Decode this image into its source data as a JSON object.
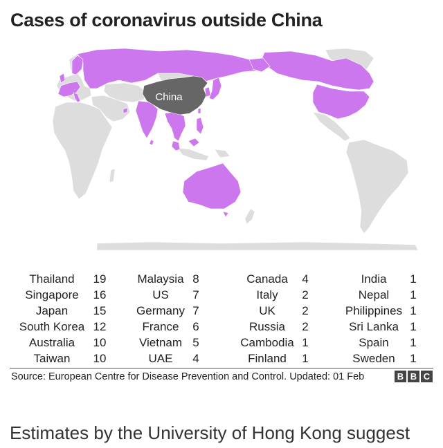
{
  "title": "Cases of coronavirus outside China",
  "map": {
    "china_label": "China",
    "colors": {
      "affected": "#cc77ee",
      "china": "#666666",
      "other": "#dddddd",
      "border": "#ffffff"
    },
    "affected_regions": [
      "Canada",
      "US",
      "Russia",
      "Finland",
      "Sweden",
      "UK",
      "Spain",
      "France",
      "Germany",
      "Italy",
      "India",
      "Nepal",
      "Sri Lanka",
      "Cambodia",
      "Vietnam",
      "Thailand",
      "Malaysia",
      "Singapore",
      "Philippines",
      "Taiwan",
      "Japan",
      "South Korea",
      "UAE",
      "Australia"
    ]
  },
  "table": {
    "columns": [
      [
        {
          "country": "Thailand",
          "cases": "19"
        },
        {
          "country": "Singapore",
          "cases": "16"
        },
        {
          "country": "Japan",
          "cases": "15"
        },
        {
          "country": "South Korea",
          "cases": "12"
        },
        {
          "country": "Australia",
          "cases": "10"
        },
        {
          "country": "Taiwan",
          "cases": "10"
        }
      ],
      [
        {
          "country": "Malaysia",
          "cases": "8"
        },
        {
          "country": "US",
          "cases": "7"
        },
        {
          "country": "Germany",
          "cases": "7"
        },
        {
          "country": "France",
          "cases": "6"
        },
        {
          "country": "Vietnam",
          "cases": "5"
        },
        {
          "country": "UAE",
          "cases": "4"
        }
      ],
      [
        {
          "country": "Canada",
          "cases": "4"
        },
        {
          "country": "Italy",
          "cases": "2"
        },
        {
          "country": "UK",
          "cases": "2"
        },
        {
          "country": "Russia",
          "cases": "2"
        },
        {
          "country": "Cambodia",
          "cases": "1"
        },
        {
          "country": "Finland",
          "cases": "1"
        }
      ],
      [
        {
          "country": "India",
          "cases": "1"
        },
        {
          "country": "Nepal",
          "cases": "1"
        },
        {
          "country": "Philippines",
          "cases": "1"
        },
        {
          "country": "Sri Lanka",
          "cases": "1"
        },
        {
          "country": "Spain",
          "cases": "1"
        },
        {
          "country": "Sweden",
          "cases": "1"
        }
      ]
    ]
  },
  "source": "Source: European Centre for Disease Prevention and Control. Updated: 01 Feb",
  "logo_letters": [
    "B",
    "B",
    "C"
  ],
  "footer_text": "Estimates by the University of Hong Kong suggest"
}
